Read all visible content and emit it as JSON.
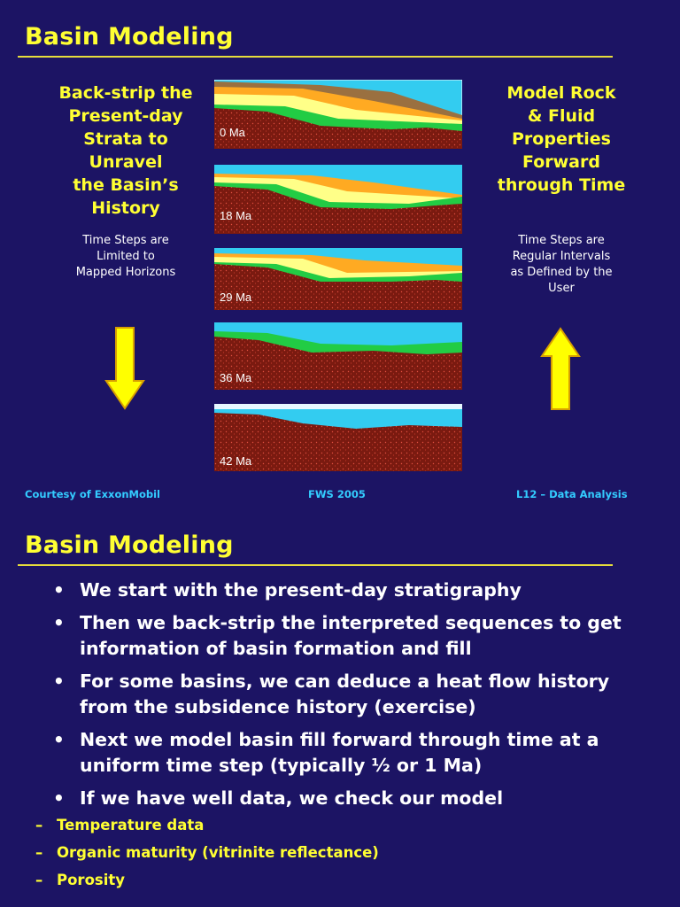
{
  "slide1": {
    "title": "Basin Modeling",
    "left": {
      "heading": "Back-strip the\nPresent-day\nStrata to\nUnravel\nthe Basin’s\nHistory",
      "note": "Time Steps are\nLimited to\nMapped Horizons",
      "arrow": "down-arrow"
    },
    "right": {
      "heading": "Model Rock\n& Fluid\nProperties\nForward\nthrough Time",
      "note": "Time Steps are\nRegular Intervals\nas Defined by the\nUser",
      "arrow": "up-arrow"
    },
    "panels": [
      {
        "label": "0 Ma"
      },
      {
        "label": "18 Ma"
      },
      {
        "label": "29 Ma"
      },
      {
        "label": "36 Ma"
      },
      {
        "label": "42 Ma"
      }
    ],
    "footer": {
      "left": "Courtesy of ExxonMobil",
      "center": "FWS 2005",
      "right": "L12 – Data Analysis"
    },
    "colors": {
      "background": "#1c1464",
      "title": "#ffff33",
      "footer": "#33ccff",
      "water": "#33ccf0",
      "basement": "#7a1a10",
      "green": "#22cc44",
      "yellow": "#ffff88",
      "orange": "#ffaa22",
      "brown": "#9a7040",
      "arrow": "#ffff00"
    }
  },
  "slide2": {
    "title": "Basin Modeling",
    "bullets": [
      {
        "text": "We start with the present-day stratigraphy"
      },
      {
        "text": "Then we back-strip the interpreted sequences to get information of basin formation and fill"
      },
      {
        "text": "For some basins, we can deduce a heat flow history from the subsidence history (exercise)"
      },
      {
        "text": "Next we model basin fill forward through time at a uniform time step (typically ½ or 1 Ma)"
      },
      {
        "text": "If we have well data, we check our model"
      }
    ],
    "sub_bullets": [
      {
        "text": "Temperature data"
      },
      {
        "text": "Organic maturity (vitrinite reflectance)"
      },
      {
        "text": "Porosity"
      }
    ],
    "bullet_glyph": "•",
    "dash_glyph": "–"
  }
}
